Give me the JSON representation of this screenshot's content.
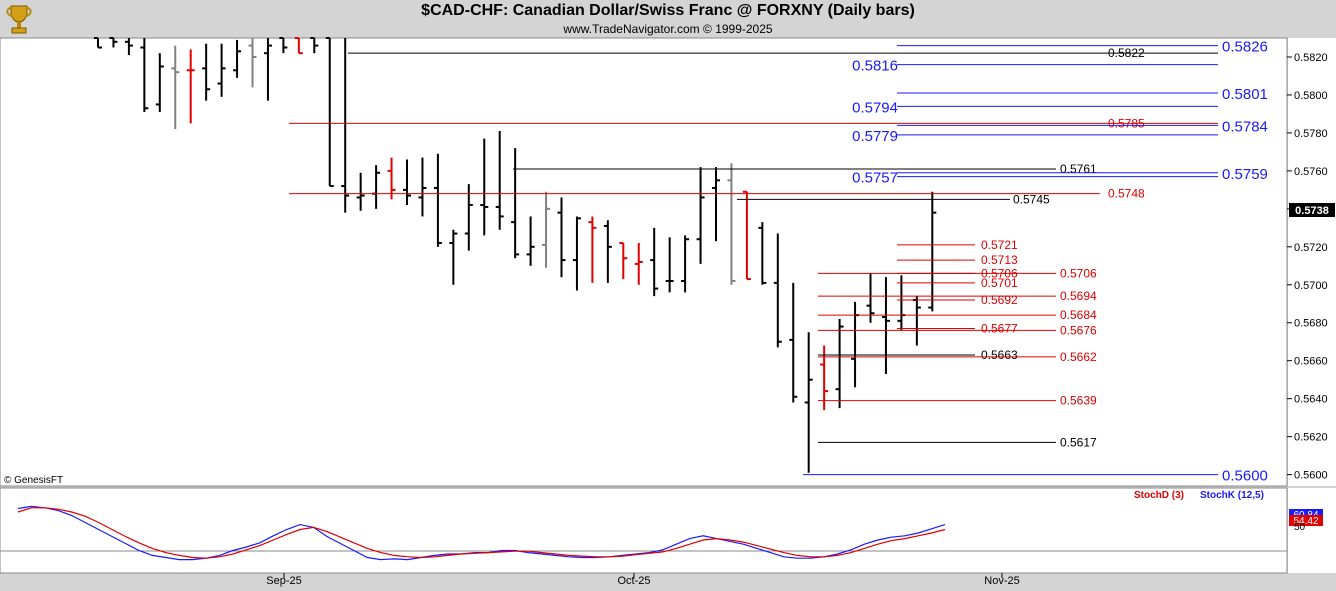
{
  "header": {
    "title": "$CAD-CHF:  Canadian Dollar/Swiss Franc @ FORXNY  (Daily bars)",
    "subtitle": "www.TradeNavigator.com © 1999-2025",
    "copyright": "© GenesisFT"
  },
  "colors": {
    "up": "#000000",
    "down": "#e00000",
    "neutral": "#808080",
    "blue": "#1a1aff",
    "stochD": "#e00000",
    "stochK": "#1a1aff"
  },
  "chart_data": [
    {
      "type": "ohlc",
      "title": "$CAD-CHF:  Canadian Dollar/Swiss Franc @ FORXNY  (Daily bars)",
      "y_ticks": [
        "0.5820",
        "0.5800",
        "0.5780",
        "0.5760",
        "0.5740",
        "0.5720",
        "0.5700",
        "0.5680",
        "0.5660",
        "0.5640",
        "0.5620",
        "0.5600"
      ],
      "ylim": [
        0.5594,
        0.583
      ],
      "x_ticks": [
        "Sep-25",
        "Oct-25",
        "Nov-25"
      ],
      "last_price": "0.5738",
      "bars": [
        {
          "o": 0.583,
          "h": 0.583,
          "l": 0.5825,
          "c": 0.5825,
          "col": "up"
        },
        {
          "o": 0.583,
          "h": 0.583,
          "l": 0.5825,
          "c": 0.5828,
          "col": "up"
        },
        {
          "o": 0.5828,
          "h": 0.583,
          "l": 0.5821,
          "c": 0.5826,
          "col": "up"
        },
        {
          "o": 0.5825,
          "h": 0.583,
          "l": 0.5791,
          "c": 0.5793,
          "col": "up"
        },
        {
          "o": 0.5795,
          "h": 0.5822,
          "l": 0.5791,
          "c": 0.5815,
          "col": "up"
        },
        {
          "o": 0.5814,
          "h": 0.5826,
          "l": 0.5782,
          "c": 0.5812,
          "col": "neutral"
        },
        {
          "o": 0.5813,
          "h": 0.5824,
          "l": 0.5785,
          "c": 0.5813,
          "col": "down"
        },
        {
          "o": 0.5814,
          "h": 0.5827,
          "l": 0.5797,
          "c": 0.5803,
          "col": "up"
        },
        {
          "o": 0.5806,
          "h": 0.5827,
          "l": 0.5799,
          "c": 0.5814,
          "col": "up"
        },
        {
          "o": 0.5813,
          "h": 0.5829,
          "l": 0.5809,
          "c": 0.5823,
          "col": "up"
        },
        {
          "o": 0.5826,
          "h": 0.583,
          "l": 0.5804,
          "c": 0.582,
          "col": "neutral"
        },
        {
          "o": 0.5822,
          "h": 0.583,
          "l": 0.5797,
          "c": 0.5826,
          "col": "up"
        },
        {
          "o": 0.583,
          "h": 0.583,
          "l": 0.5822,
          "c": 0.5825,
          "col": "up"
        },
        {
          "o": 0.583,
          "h": 0.583,
          "l": 0.5822,
          "c": 0.5822,
          "col": "down"
        },
        {
          "o": 0.583,
          "h": 0.583,
          "l": 0.5822,
          "c": 0.5826,
          "col": "up"
        },
        {
          "o": 0.583,
          "h": 0.583,
          "l": 0.5752,
          "c": 0.5752,
          "col": "up"
        },
        {
          "o": 0.5752,
          "h": 0.583,
          "l": 0.5738,
          "c": 0.5747,
          "col": "up"
        },
        {
          "o": 0.5746,
          "h": 0.5759,
          "l": 0.5739,
          "c": 0.5747,
          "col": "up"
        },
        {
          "o": 0.5748,
          "h": 0.5763,
          "l": 0.574,
          "c": 0.5759,
          "col": "up"
        },
        {
          "o": 0.576,
          "h": 0.5767,
          "l": 0.5745,
          "c": 0.575,
          "col": "down"
        },
        {
          "o": 0.575,
          "h": 0.5766,
          "l": 0.5742,
          "c": 0.5747,
          "col": "up"
        },
        {
          "o": 0.5746,
          "h": 0.5767,
          "l": 0.5736,
          "c": 0.5751,
          "col": "up"
        },
        {
          "o": 0.5751,
          "h": 0.5769,
          "l": 0.572,
          "c": 0.5722,
          "col": "up"
        },
        {
          "o": 0.5722,
          "h": 0.5729,
          "l": 0.57,
          "c": 0.5727,
          "col": "up"
        },
        {
          "o": 0.5727,
          "h": 0.5753,
          "l": 0.5718,
          "c": 0.5742,
          "col": "up"
        },
        {
          "o": 0.5742,
          "h": 0.5777,
          "l": 0.5726,
          "c": 0.5741,
          "col": "up"
        },
        {
          "o": 0.5741,
          "h": 0.5781,
          "l": 0.5729,
          "c": 0.5736,
          "col": "up"
        },
        {
          "o": 0.5733,
          "h": 0.5772,
          "l": 0.5714,
          "c": 0.5716,
          "col": "up"
        },
        {
          "o": 0.5716,
          "h": 0.5736,
          "l": 0.571,
          "c": 0.572,
          "col": "up"
        },
        {
          "o": 0.5721,
          "h": 0.5749,
          "l": 0.5709,
          "c": 0.574,
          "col": "neutral"
        },
        {
          "o": 0.5738,
          "h": 0.5746,
          "l": 0.5704,
          "c": 0.5713,
          "col": "up"
        },
        {
          "o": 0.5713,
          "h": 0.5736,
          "l": 0.5697,
          "c": 0.5735,
          "col": "up"
        },
        {
          "o": 0.5733,
          "h": 0.5736,
          "l": 0.5701,
          "c": 0.573,
          "col": "down"
        },
        {
          "o": 0.5731,
          "h": 0.5734,
          "l": 0.5701,
          "c": 0.572,
          "col": "up"
        },
        {
          "o": 0.5722,
          "h": 0.5722,
          "l": 0.5703,
          "c": 0.5714,
          "col": "down"
        },
        {
          "o": 0.5711,
          "h": 0.5722,
          "l": 0.57,
          "c": 0.5712,
          "col": "down"
        },
        {
          "o": 0.5713,
          "h": 0.573,
          "l": 0.5694,
          "c": 0.5698,
          "col": "up"
        },
        {
          "o": 0.5702,
          "h": 0.5725,
          "l": 0.5696,
          "c": 0.5702,
          "col": "up"
        },
        {
          "o": 0.5702,
          "h": 0.5726,
          "l": 0.5696,
          "c": 0.5724,
          "col": "up"
        },
        {
          "o": 0.5724,
          "h": 0.5762,
          "l": 0.5711,
          "c": 0.5746,
          "col": "up"
        },
        {
          "o": 0.5751,
          "h": 0.5762,
          "l": 0.5723,
          "c": 0.5755,
          "col": "up"
        },
        {
          "o": 0.5755,
          "h": 0.5764,
          "l": 0.57,
          "c": 0.5702,
          "col": "neutral"
        },
        {
          "o": 0.5749,
          "h": 0.5749,
          "l": 0.5703,
          "c": 0.5703,
          "col": "down"
        },
        {
          "o": 0.573,
          "h": 0.5733,
          "l": 0.57,
          "c": 0.5701,
          "col": "up"
        },
        {
          "o": 0.5701,
          "h": 0.5727,
          "l": 0.5667,
          "c": 0.567,
          "col": "up"
        },
        {
          "o": 0.5671,
          "h": 0.5701,
          "l": 0.5638,
          "c": 0.5641,
          "col": "up"
        },
        {
          "o": 0.5638,
          "h": 0.5675,
          "l": 0.5601,
          "c": 0.565,
          "col": "up"
        },
        {
          "o": 0.5658,
          "h": 0.5668,
          "l": 0.5634,
          "c": 0.5644,
          "col": "down"
        },
        {
          "o": 0.5645,
          "h": 0.5682,
          "l": 0.5635,
          "c": 0.5678,
          "col": "up"
        },
        {
          "o": 0.5661,
          "h": 0.5691,
          "l": 0.5646,
          "c": 0.5684,
          "col": "up"
        },
        {
          "o": 0.5689,
          "h": 0.5706,
          "l": 0.568,
          "c": 0.5685,
          "col": "up"
        },
        {
          "o": 0.5683,
          "h": 0.5704,
          "l": 0.5653,
          "c": 0.5681,
          "col": "up"
        },
        {
          "o": 0.5681,
          "h": 0.5705,
          "l": 0.5676,
          "c": 0.5684,
          "col": "up"
        },
        {
          "o": 0.5692,
          "h": 0.5694,
          "l": 0.5668,
          "c": 0.5688,
          "col": "up"
        },
        {
          "o": 0.5688,
          "h": 0.5749,
          "l": 0.5686,
          "c": 0.5738,
          "col": "up"
        }
      ],
      "levels": [
        {
          "label": "0.5822",
          "color": "up",
          "price": 0.5822
        },
        {
          "label": "0.5785",
          "color": "down",
          "price": 0.5785
        },
        {
          "label": "0.5761",
          "color": "up",
          "price": 0.5761
        },
        {
          "label": "0.5748",
          "color": "down",
          "price": 0.5748
        },
        {
          "label": "0.5745",
          "color": "up",
          "price": 0.5745
        },
        {
          "label": "0.5721",
          "color": "down",
          "price": 0.5721
        },
        {
          "label": "0.5713",
          "color": "down",
          "price": 0.5713
        },
        {
          "label": "0.5706",
          "color": "down",
          "price": 0.5706
        },
        {
          "label": "0.5701",
          "color": "down",
          "price": 0.5701
        },
        {
          "label": "0.5692",
          "color": "down",
          "price": 0.5692
        },
        {
          "label": "0.5677",
          "color": "down",
          "price": 0.5677
        },
        {
          "label": "0.5663",
          "color": "up",
          "price": 0.5663
        },
        {
          "label": "0.5706",
          "color": "down",
          "price": 0.5706
        },
        {
          "label": "0.5694",
          "color": "down",
          "price": 0.5694
        },
        {
          "label": "0.5684",
          "color": "down",
          "price": 0.5684
        },
        {
          "label": "0.5676",
          "color": "down",
          "price": 0.5676
        },
        {
          "label": "0.5662",
          "color": "down",
          "price": 0.5662
        },
        {
          "label": "0.5639",
          "color": "down",
          "price": 0.5639
        },
        {
          "label": "0.5617",
          "color": "up",
          "price": 0.5617
        }
      ],
      "blue_levels": [
        {
          "label": "0.5826",
          "price": 0.5826
        },
        {
          "label": "0.5816",
          "price": 0.5816
        },
        {
          "label": "0.5801",
          "price": 0.5801
        },
        {
          "label": "0.5794",
          "price": 0.5794
        },
        {
          "label": "0.5784",
          "price": 0.5784
        },
        {
          "label": "0.5779",
          "price": 0.5779
        },
        {
          "label": "0.5759",
          "price": 0.5759
        },
        {
          "label": "0.5757",
          "price": 0.5757
        },
        {
          "label": "0.5600",
          "price": 0.56
        }
      ]
    },
    {
      "type": "line",
      "legend": [
        "StochD (3)",
        "StochK (12,5)"
      ],
      "y_ticks": [
        "50"
      ],
      "ylim": [
        0,
        100
      ],
      "last_values": [
        "60.84",
        "54.42"
      ],
      "series": [
        {
          "name": "StochK (12,5)",
          "values": [
            85,
            88,
            86,
            82,
            75,
            65,
            55,
            45,
            35,
            25,
            18,
            15,
            12,
            12,
            14,
            18,
            25,
            30,
            36,
            46,
            55,
            62,
            58,
            45,
            35,
            25,
            15,
            12,
            13,
            12,
            15,
            18,
            20,
            20,
            22,
            22,
            25,
            25,
            22,
            20,
            18,
            16,
            15,
            15,
            16,
            18,
            20,
            22,
            26,
            34,
            42,
            46,
            42,
            38,
            34,
            28,
            22,
            16,
            14,
            14,
            16,
            20,
            26,
            34,
            40,
            44,
            46,
            50,
            56,
            62
          ]
        },
        {
          "name": "StochD (3)",
          "values": [
            80,
            86,
            86,
            84,
            80,
            74,
            65,
            55,
            45,
            36,
            28,
            22,
            18,
            15,
            14,
            16,
            20,
            26,
            32,
            40,
            48,
            55,
            58,
            52,
            44,
            36,
            28,
            22,
            18,
            16,
            15,
            16,
            18,
            20,
            21,
            22,
            23,
            24,
            24,
            22,
            20,
            18,
            17,
            16,
            16,
            17,
            19,
            21,
            23,
            28,
            34,
            40,
            42,
            40,
            37,
            32,
            27,
            22,
            18,
            16,
            16,
            18,
            22,
            28,
            34,
            39,
            42,
            46,
            50,
            55
          ]
        }
      ]
    }
  ]
}
